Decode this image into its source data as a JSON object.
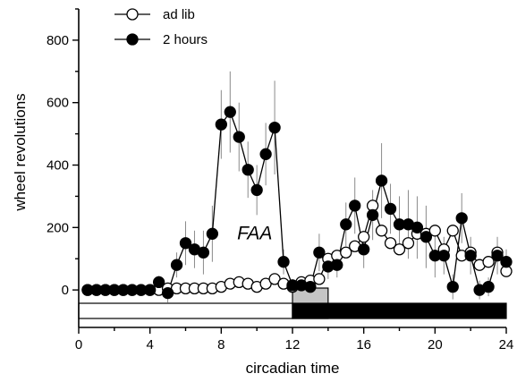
{
  "chart_data": {
    "type": "line",
    "xlabel": "circadian time",
    "ylabel": "wheel revolutions",
    "xlim": [
      0,
      24
    ],
    "ylim": [
      -120,
      900
    ],
    "xticks": [
      0,
      4,
      8,
      12,
      16,
      20,
      24
    ],
    "yticks": [
      0,
      200,
      400,
      600,
      800
    ],
    "legend_position": "top-left",
    "annotation": {
      "text": "FAA",
      "x": 10.3,
      "y": 185
    },
    "series": [
      {
        "name": "ad lib",
        "marker": "open-circle",
        "x": [
          0.5,
          1,
          1.5,
          2,
          2.5,
          3,
          3.5,
          4,
          4.5,
          5,
          5.5,
          6,
          6.5,
          7,
          7.5,
          8,
          8.5,
          9,
          9.5,
          10,
          10.5,
          11,
          11.5,
          12,
          12.5,
          13,
          13.5,
          14,
          14.5,
          15,
          15.5,
          16,
          16.5,
          17,
          17.5,
          18,
          18.5,
          19,
          19.5,
          20,
          20.5,
          21,
          21.5,
          22,
          22.5,
          23,
          23.5,
          24
        ],
        "values": [
          0,
          0,
          0,
          0,
          0,
          0,
          0,
          0,
          0,
          5,
          5,
          5,
          5,
          5,
          5,
          10,
          20,
          25,
          20,
          10,
          20,
          35,
          20,
          10,
          25,
          30,
          35,
          100,
          110,
          120,
          140,
          170,
          270,
          190,
          150,
          130,
          150,
          180,
          180,
          190,
          130,
          190,
          110,
          120,
          80,
          90,
          120,
          60
        ]
      },
      {
        "name": "2 hours",
        "marker": "filled-circle",
        "x": [
          0.5,
          1,
          1.5,
          2,
          2.5,
          3,
          3.5,
          4,
          4.5,
          5,
          5.5,
          6,
          6.5,
          7,
          7.5,
          8,
          8.5,
          9,
          9.5,
          10,
          10.5,
          11,
          11.5,
          12,
          12.5,
          13,
          13.5,
          14,
          14.5,
          15,
          15.5,
          16,
          16.5,
          17,
          17.5,
          18,
          18.5,
          19,
          19.5,
          20,
          20.5,
          21,
          21.5,
          22,
          22.5,
          23,
          23.5,
          24
        ],
        "values": [
          0,
          0,
          0,
          0,
          0,
          0,
          0,
          0,
          25,
          -10,
          80,
          150,
          130,
          120,
          180,
          530,
          570,
          490,
          385,
          320,
          435,
          520,
          90,
          15,
          15,
          10,
          120,
          75,
          80,
          210,
          270,
          130,
          240,
          350,
          260,
          210,
          210,
          200,
          170,
          110,
          110,
          10,
          230,
          110,
          0,
          10,
          110,
          90
        ],
        "errors": [
          5,
          5,
          5,
          5,
          5,
          5,
          5,
          5,
          20,
          30,
          40,
          70,
          60,
          70,
          90,
          110,
          130,
          110,
          90,
          80,
          100,
          150,
          40,
          20,
          20,
          20,
          60,
          40,
          40,
          70,
          90,
          60,
          80,
          120,
          80,
          90,
          110,
          100,
          100,
          70,
          60,
          40,
          80,
          60,
          30,
          30,
          60,
          40
        ]
      }
    ],
    "light_dark_bars": [
      {
        "phase": "light",
        "start": 0,
        "end": 12
      },
      {
        "phase": "food",
        "start": 12,
        "end": 14
      },
      {
        "phase": "dark",
        "start": 12,
        "end": 24
      }
    ]
  }
}
